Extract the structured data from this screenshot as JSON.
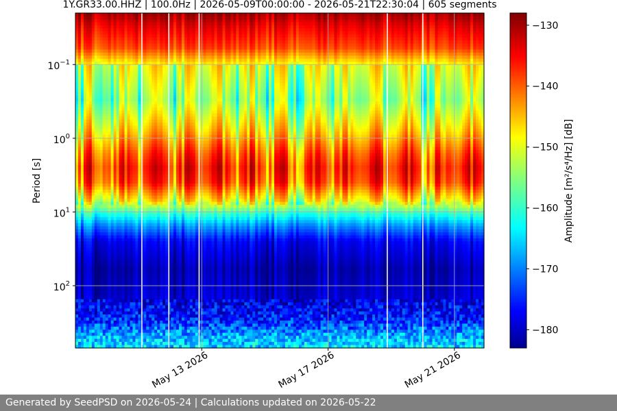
{
  "chart_data": {
    "type": "heatmap",
    "title": "1Y.GR33.00.HHZ | 100.0Hz | 2026-05-09T00:00:00 - 2026-05-21T22:30:04 | 605 segments",
    "xlabel": "",
    "ylabel": "Period [s]",
    "x_axis": {
      "type": "date",
      "range": [
        "2026-05-09T00:00:00",
        "2026-05-21T22:30:04"
      ],
      "ticks": [
        {
          "date": "2026-05-13",
          "label": "May 13 2026"
        },
        {
          "date": "2026-05-17",
          "label": "May 17 2026"
        },
        {
          "date": "2026-05-21",
          "label": "May 21 2026"
        }
      ]
    },
    "y_axis": {
      "scale": "log",
      "inverted": true,
      "range": [
        0.02,
        700
      ],
      "ticks": [
        {
          "value": 0.1,
          "base": "10",
          "exp": "−1"
        },
        {
          "value": 1,
          "base": "10",
          "exp": "0"
        },
        {
          "value": 10,
          "base": "10",
          "exp": "1"
        },
        {
          "value": 100,
          "base": "10",
          "exp": "2"
        }
      ]
    },
    "grid": true,
    "colormap": "jet",
    "colorbar": {
      "label": "Amplitude [m²/s⁴/Hz] [dB]",
      "range": [
        -183,
        -128
      ],
      "ticks": [
        -130,
        -140,
        -150,
        -160,
        -170,
        -180
      ]
    },
    "segments": 605,
    "profile": [
      {
        "period": 0.02,
        "db": -129
      },
      {
        "period": 0.03,
        "db": -133
      },
      {
        "period": 0.06,
        "db": -138
      },
      {
        "period": 0.1,
        "db": -148
      },
      {
        "period": 0.3,
        "db": -153
      },
      {
        "period": 0.8,
        "db": -145
      },
      {
        "period": 1.6,
        "db": -138
      },
      {
        "period": 2.5,
        "db": -135
      },
      {
        "period": 4,
        "db": -137
      },
      {
        "period": 7,
        "db": -147
      },
      {
        "period": 10,
        "db": -158
      },
      {
        "period": 15,
        "db": -167
      },
      {
        "period": 25,
        "db": -176
      },
      {
        "period": 60,
        "db": -180
      },
      {
        "period": 150,
        "db": -178
      },
      {
        "period": 300,
        "db": -174
      },
      {
        "period": 500,
        "db": -166
      },
      {
        "period": 700,
        "db": -164
      }
    ],
    "gaps": [
      "2026-05-11T02:30:00",
      "2026-05-11T23:00:00",
      "2026-05-12T22:00:00",
      "2026-05-18T21:00:00",
      "2026-05-20T00:00:00"
    ]
  },
  "footer": {
    "text": "Generated by SeedPSD on 2026-05-24 | Calculations updated on 2026-05-22"
  }
}
